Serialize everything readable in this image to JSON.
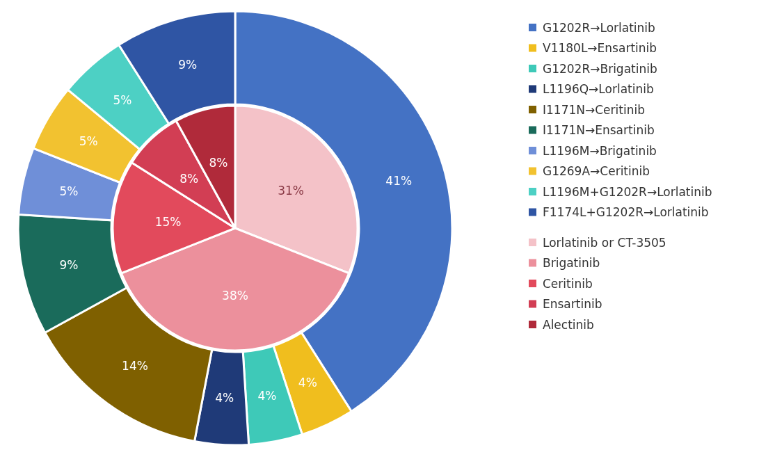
{
  "chart_data": [
    {
      "type": "donut",
      "categories": [
        "G1202R→Lorlatinib",
        "V1180L→Ensartinib",
        "G1202R→Brigatinib",
        "L1196Q→Lorlatinib",
        "I1171N→Ceritinib",
        "I1171N→Ensartinib",
        "L1196M→Brigatinib",
        "G1269A→Ceritinib",
        "L1196M+G1202R→Lorlatinib",
        "F1174L+G1202R→Lorlatinib"
      ],
      "values": [
        41,
        4,
        4,
        4,
        14,
        9,
        5,
        5,
        5,
        9
      ],
      "value_labels": [
        "41%",
        "4%",
        "4%",
        "4%",
        "14%",
        "9%",
        "5%",
        "5%",
        "5%",
        "9%"
      ],
      "colors": [
        "#4472c4",
        "#f0be1e",
        "#3ec9b8",
        "#1f3a78",
        "#7f6000",
        "#1a6b5b",
        "#6f8fd8",
        "#f2c230",
        "#4dd0c4",
        "#2f55a4"
      ],
      "legend": "right"
    },
    {
      "type": "pie",
      "categories": [
        "Lorlatinib or CT-3505",
        "Brigatinib",
        "Ceritinib",
        "Ensartinib",
        "Alectinib"
      ],
      "values": [
        31,
        38,
        15,
        8,
        8
      ],
      "value_labels": [
        "31%",
        "38%",
        "15%",
        "8%",
        "8%"
      ],
      "colors": [
        "#f4c2c8",
        "#ec909c",
        "#e24a5c",
        "#d23e54",
        "#b02a3a"
      ],
      "legend": "right"
    }
  ]
}
